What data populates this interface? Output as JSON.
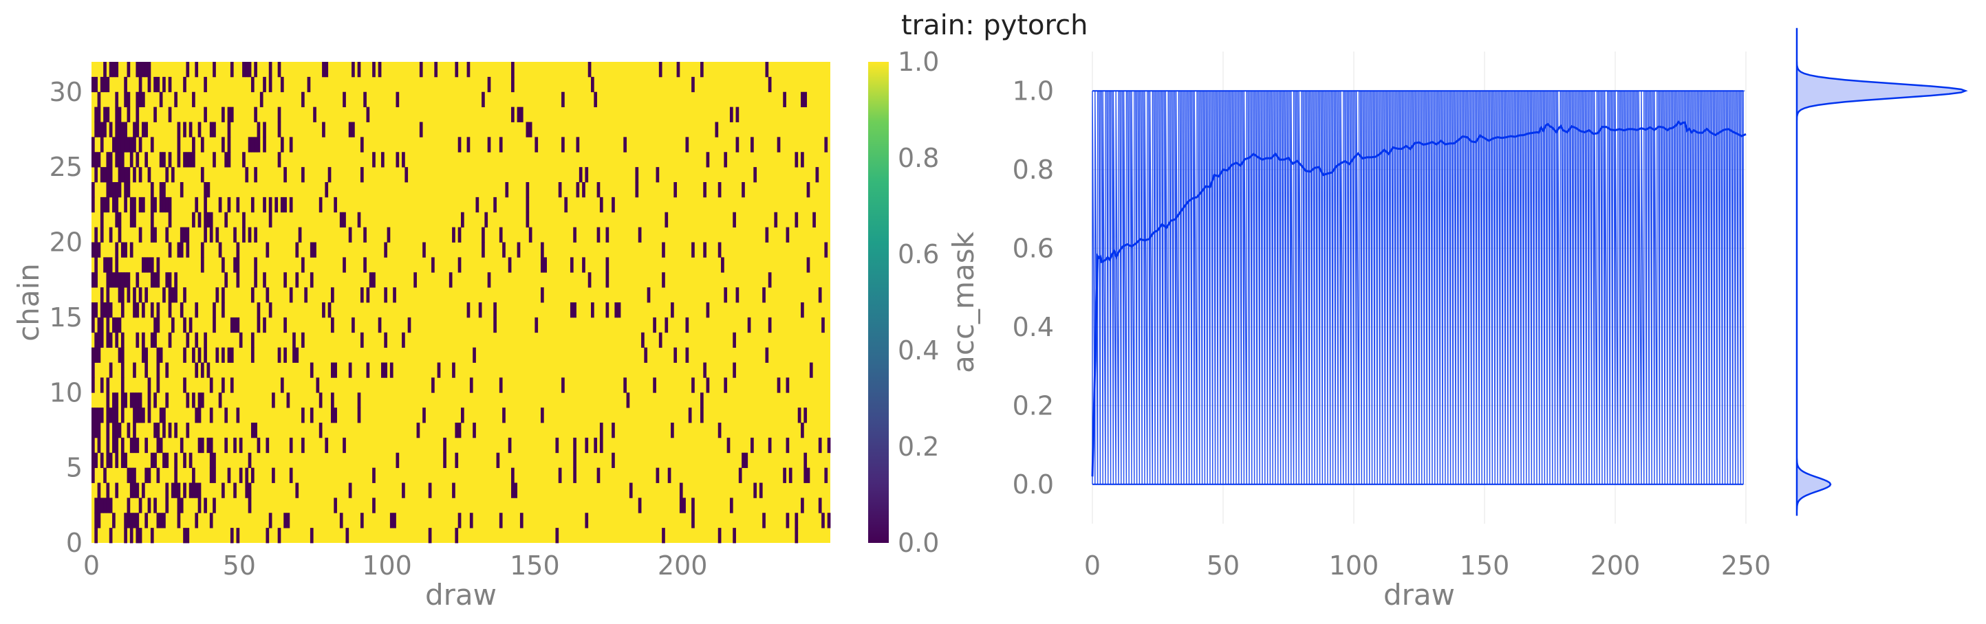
{
  "title": "train: pytorch",
  "chart_data": [
    {
      "type": "heatmap",
      "xlabel": "draw",
      "ylabel": "chain",
      "xlim": [
        0,
        250
      ],
      "ylim": [
        0,
        32
      ],
      "x_ticks": [
        0,
        50,
        100,
        150,
        200
      ],
      "y_ticks": [
        0,
        5,
        10,
        15,
        20,
        25,
        30
      ],
      "n_draws": 250,
      "n_chains": 32,
      "description_values": "binary acceptance mask per (chain, draw): 1 = accepted (yellow), 0 = rejected (dark purple); rejection density decreases with draw",
      "colorbar": {
        "label": "acc_mask",
        "range": [
          0.0,
          1.0
        ],
        "ticks": [
          0.0,
          0.2,
          0.4,
          0.6,
          0.8,
          1.0
        ],
        "colormap": "viridis"
      }
    },
    {
      "type": "line",
      "xlabel": "draw",
      "ylabel": "",
      "xlim": [
        0,
        250
      ],
      "ylim": [
        -0.1,
        1.1
      ],
      "x_ticks": [
        0,
        50,
        100,
        150,
        200,
        250
      ],
      "y_ticks": [
        "0.0",
        "0.2",
        "0.4",
        "0.6",
        "0.8",
        "1.0"
      ],
      "series_color": "#0033ee",
      "running_mean": {
        "x": [
          0,
          2,
          5,
          10,
          20,
          30,
          40,
          50,
          60,
          70,
          80,
          90,
          100,
          110,
          120,
          130,
          140,
          150,
          160,
          170,
          175,
          180,
          190,
          200,
          210,
          220,
          225,
          230,
          240,
          250
        ],
        "y": [
          0.02,
          0.58,
          0.57,
          0.59,
          0.62,
          0.67,
          0.73,
          0.8,
          0.83,
          0.84,
          0.81,
          0.79,
          0.83,
          0.84,
          0.86,
          0.87,
          0.875,
          0.88,
          0.885,
          0.895,
          0.91,
          0.9,
          0.9,
          0.9,
          0.905,
          0.9,
          0.915,
          0.9,
          0.895,
          0.89
        ]
      },
      "marginal_kde": {
        "orientation": "vertical",
        "peaks": [
          {
            "at": 1.0,
            "relative_height": 1.0
          },
          {
            "at": 0.0,
            "relative_height": 0.2
          }
        ]
      }
    }
  ]
}
